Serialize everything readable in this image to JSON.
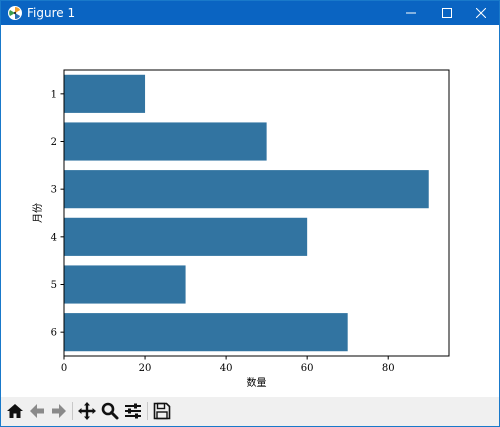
{
  "window": {
    "title": "Figure 1",
    "controls": {
      "minimize": "minimize",
      "maximize": "maximize",
      "close": "close"
    },
    "titlebar_color": "#0a64c2"
  },
  "toolbar": {
    "buttons": [
      {
        "name": "home-button",
        "icon": "home-icon"
      },
      {
        "name": "back-button",
        "icon": "arrow-left-icon"
      },
      {
        "name": "forward-button",
        "icon": "arrow-right-icon"
      },
      {
        "name": "pan-button",
        "icon": "move-icon"
      },
      {
        "name": "zoom-button",
        "icon": "zoom-icon"
      },
      {
        "name": "configure-subplots-button",
        "icon": "sliders-icon"
      },
      {
        "name": "save-button",
        "icon": "save-icon"
      }
    ]
  },
  "chart_data": {
    "type": "bar",
    "orientation": "horizontal",
    "categories": [
      "1",
      "2",
      "3",
      "4",
      "5",
      "6"
    ],
    "values": [
      20,
      50,
      90,
      60,
      30,
      70
    ],
    "xlabel": "数量",
    "ylabel": "月份",
    "xlim": [
      0,
      95
    ],
    "xticks": [
      0,
      20,
      40,
      60,
      80
    ],
    "y_inverted": true,
    "grid": false,
    "bar_color": "#3274a1"
  }
}
